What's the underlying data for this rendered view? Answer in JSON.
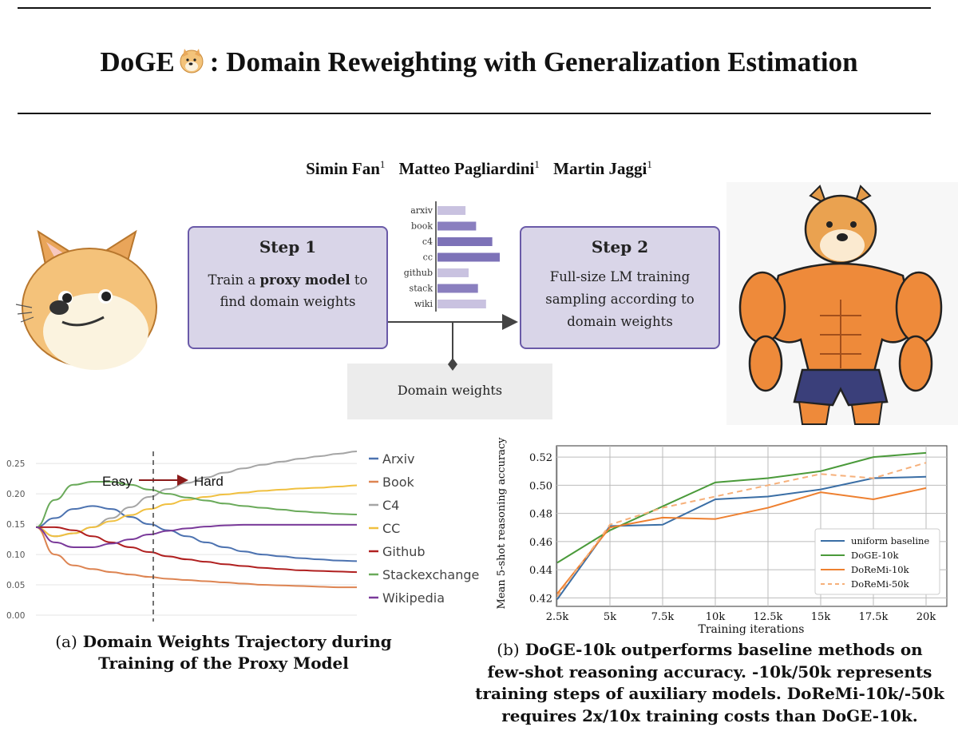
{
  "header": {
    "title_prefix": "DoGE",
    "title_rest": ": Domain Reweighting with Generalization Estimation"
  },
  "authors": [
    {
      "name": "Simin Fan",
      "affil": "1"
    },
    {
      "name": "Matteo Pagliardini",
      "affil": "1"
    },
    {
      "name": "Martin Jaggi",
      "affil": "1"
    }
  ],
  "pipeline": {
    "step1": {
      "heading": "Step 1",
      "line1_a": "Train a ",
      "line1_bold": "proxy model",
      "line1_b": " to",
      "line2": "find domain weights"
    },
    "step2": {
      "heading": "Step 2",
      "line1": "Full-size LM training",
      "line2": "sampling according to",
      "line3": "domain weights"
    },
    "domain_weights_label": "Domain weights",
    "mini_bars": {
      "labels": [
        "arxiv",
        "book",
        "c4",
        "cc",
        "github",
        "stack",
        "wiki"
      ],
      "values": [
        0.45,
        0.62,
        0.88,
        1.0,
        0.5,
        0.65,
        0.78
      ]
    }
  },
  "chart_a": {
    "type": "line",
    "y_ticks": [
      "0.00",
      "0.05",
      "0.10",
      "0.15",
      "0.20",
      "0.25"
    ],
    "ylim": [
      0,
      0.27
    ],
    "annotation_easy": "Easy",
    "annotation_hard": "Hard",
    "legend_position": "right",
    "series": [
      {
        "name": "Arxiv",
        "color": "#4c72b0",
        "values": [
          0.145,
          0.16,
          0.175,
          0.18,
          0.175,
          0.162,
          0.15,
          0.14,
          0.13,
          0.12,
          0.112,
          0.105,
          0.1,
          0.097,
          0.094,
          0.092,
          0.09,
          0.089
        ]
      },
      {
        "name": "Book",
        "color": "#dd8452",
        "values": [
          0.145,
          0.1,
          0.082,
          0.076,
          0.071,
          0.067,
          0.063,
          0.06,
          0.058,
          0.056,
          0.054,
          0.052,
          0.05,
          0.049,
          0.048,
          0.047,
          0.046,
          0.046
        ]
      },
      {
        "name": "C4",
        "color": "#a5a5a5",
        "values": [
          0.145,
          0.13,
          0.135,
          0.145,
          0.16,
          0.178,
          0.195,
          0.208,
          0.218,
          0.227,
          0.235,
          0.242,
          0.248,
          0.253,
          0.258,
          0.262,
          0.266,
          0.27
        ]
      },
      {
        "name": "CC",
        "color": "#f0c040",
        "values": [
          0.145,
          0.13,
          0.135,
          0.145,
          0.155,
          0.165,
          0.175,
          0.183,
          0.19,
          0.195,
          0.199,
          0.202,
          0.205,
          0.207,
          0.209,
          0.21,
          0.212,
          0.214
        ]
      },
      {
        "name": "Github",
        "color": "#b02020",
        "values": [
          0.145,
          0.145,
          0.14,
          0.13,
          0.12,
          0.112,
          0.104,
          0.097,
          0.092,
          0.088,
          0.084,
          0.081,
          0.078,
          0.076,
          0.074,
          0.073,
          0.072,
          0.071
        ]
      },
      {
        "name": "Stackexchange",
        "color": "#6aaa5a",
        "values": [
          0.145,
          0.19,
          0.215,
          0.22,
          0.22,
          0.215,
          0.207,
          0.2,
          0.194,
          0.189,
          0.184,
          0.18,
          0.177,
          0.174,
          0.171,
          0.169,
          0.167,
          0.166
        ]
      },
      {
        "name": "Wikipedia",
        "color": "#7a3a9a",
        "values": [
          0.145,
          0.12,
          0.112,
          0.112,
          0.118,
          0.125,
          0.133,
          0.139,
          0.143,
          0.146,
          0.148,
          0.149,
          0.149,
          0.149,
          0.149,
          0.149,
          0.149,
          0.149
        ]
      }
    ]
  },
  "chart_b": {
    "type": "line",
    "xlabel": "Training iterations",
    "ylabel": "Mean 5-shot reasoning accuracy",
    "x": [
      "2.5k",
      "5k",
      "7.5k",
      "10k",
      "12.5k",
      "15k",
      "17.5k",
      "20k"
    ],
    "y_ticks": [
      "0.42",
      "0.44",
      "0.46",
      "0.48",
      "0.50",
      "0.52"
    ],
    "ylim": [
      0.414,
      0.528
    ],
    "legend_position": "bottom-right",
    "series": [
      {
        "name": "uniform baseline",
        "color": "#3a6ea5",
        "dash": false,
        "values": [
          0.419,
          0.471,
          0.472,
          0.49,
          0.492,
          0.497,
          0.505,
          0.506
        ]
      },
      {
        "name": "DoGE-10k",
        "color": "#4a9a3a",
        "dash": false,
        "values": [
          0.445,
          0.468,
          0.485,
          0.502,
          0.505,
          0.51,
          0.52,
          0.523
        ]
      },
      {
        "name": "DoReMi-10k",
        "color": "#ee8030",
        "dash": false,
        "values": [
          0.423,
          0.47,
          0.477,
          0.476,
          0.484,
          0.495,
          0.49,
          0.498
        ]
      },
      {
        "name": "DoReMi-50k",
        "color": "#f6b07a",
        "dash": true,
        "values": [
          0.421,
          0.472,
          0.484,
          0.492,
          0.5,
          0.508,
          0.505,
          0.516
        ]
      }
    ]
  },
  "captions": {
    "a_prefix": "(a)",
    "a_line1": "Domain Weights Trajectory during",
    "a_line2": "Training of the Proxy Model",
    "b_prefix": "(b)",
    "b_line1": "DoGE-10k outperforms baseline methods on",
    "b_line2": "few-shot reasoning accuracy. -10k/50k represents",
    "b_line3": "training steps of auxiliary models. DoReMi-10k/-50k",
    "b_line4": "requires 2x/10x training costs than DoGE-10k."
  }
}
